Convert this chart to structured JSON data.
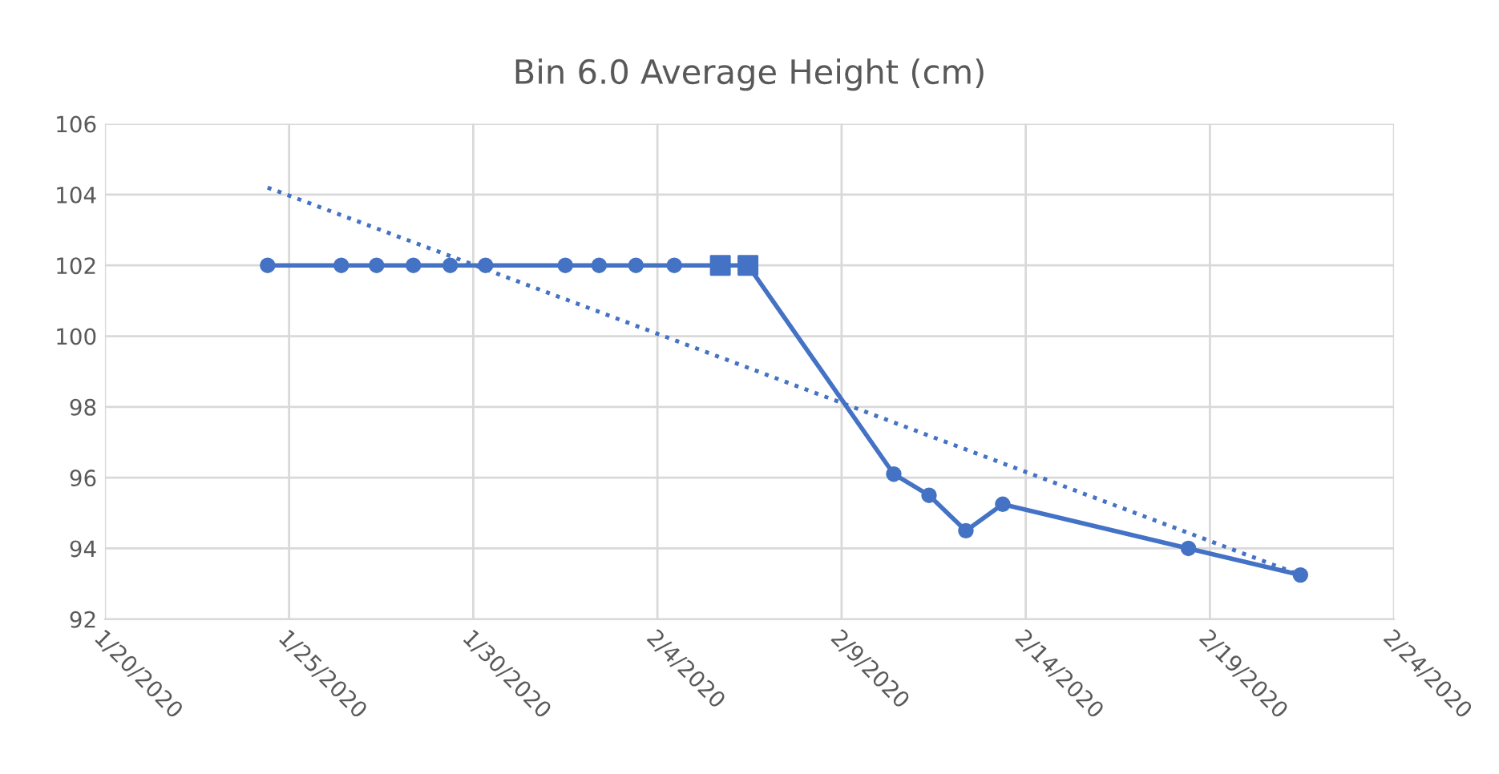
{
  "chart_data": {
    "type": "line",
    "title": "Bin 6.0 Average Height (cm)",
    "xlim": [
      "2020-01-20",
      "2020-02-24"
    ],
    "xticks": [
      {
        "value": "2020-01-20",
        "label": "1/20/2020"
      },
      {
        "value": "2020-01-25",
        "label": "1/25/2020"
      },
      {
        "value": "2020-01-30",
        "label": "1/30/2020"
      },
      {
        "value": "2020-02-04",
        "label": "2/4/2020"
      },
      {
        "value": "2020-02-09",
        "label": "2/9/2020"
      },
      {
        "value": "2020-02-14",
        "label": "2/14/2020"
      },
      {
        "value": "2020-02-19",
        "label": "2/19/2020"
      },
      {
        "value": "2020-02-24",
        "label": "2/24/2020"
      }
    ],
    "ylim": [
      92,
      106
    ],
    "yticks": [
      92,
      94,
      96,
      98,
      100,
      102,
      104,
      106
    ],
    "grid": true,
    "legend": false,
    "series": [
      {
        "color": "#4472c4",
        "marker": "circle",
        "line_style": "solid",
        "x": [
          "2020-01-24T10:00",
          "2020-01-26T10:00",
          "2020-01-27T09:00",
          "2020-01-28T09:00",
          "2020-01-29T09:00",
          "2020-01-30T08:00",
          "2020-02-01T12:00",
          "2020-02-02T10:00",
          "2020-02-03T10:00",
          "2020-02-04T11:00",
          "2020-02-05T17:00",
          "2020-02-06T11:00",
          "2020-02-10T10:00",
          "2020-02-11T09:00",
          "2020-02-12T09:00",
          "2020-02-13T09:00",
          "2020-02-18T10:00",
          "2020-02-21T11:00"
        ],
        "values": [
          102,
          102,
          102,
          102,
          102,
          102,
          102,
          102,
          102,
          102,
          102,
          102,
          96.1,
          95.5,
          94.5,
          95.25,
          94.0,
          93.25
        ]
      },
      {
        "type": "scatter",
        "color": "#4472c4",
        "marker": "square",
        "x": [
          "2020-02-05T17:00",
          "2020-02-06T11:00"
        ],
        "values": [
          102,
          102
        ]
      },
      {
        "type": "line",
        "color": "#4472c4",
        "marker": "none",
        "line_style": "dotted",
        "x": [
          "2020-01-24T10:00",
          "2020-02-21T11:00"
        ],
        "values": [
          104.2,
          93.25
        ]
      }
    ]
  }
}
